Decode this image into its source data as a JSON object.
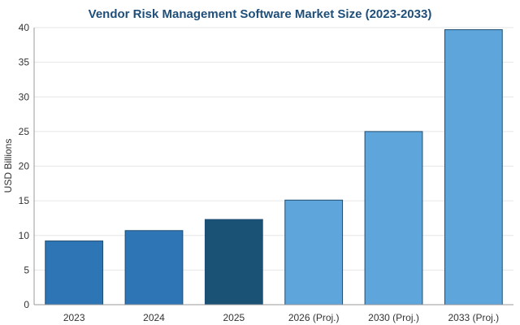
{
  "chart_data": {
    "type": "bar",
    "title": "Vendor Risk Management Software Market Size (2023-2033)",
    "xlabel": "",
    "ylabel": "USD Billions",
    "ylim": [
      0,
      40
    ],
    "yticks": [
      "0",
      "5",
      "10",
      "15",
      "20",
      "25",
      "30",
      "35",
      "40"
    ],
    "categories": [
      "2023",
      "2024",
      "2025",
      "2026 (Proj.)",
      "2030 (Proj.)",
      "2033 (Proj.)"
    ],
    "values": [
      9.2,
      10.7,
      12.3,
      15.1,
      25.0,
      39.7
    ],
    "bar_colors": [
      "#2e75b6",
      "#2e75b6",
      "#1a5276",
      "#5da5da",
      "#5da5da",
      "#5da5da"
    ],
    "grid": true,
    "legend": "none"
  },
  "colors": {
    "title": "#1f4e79",
    "grid": "#e6e6e6",
    "bar_edge": "#1e4d70"
  }
}
